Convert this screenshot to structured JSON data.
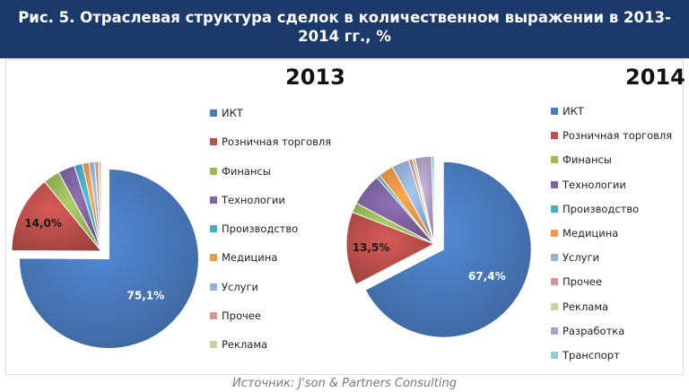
{
  "header": {
    "title": "Рис. 5. Отраслевая структура сделок в количественном выражении в 2013-2014 гг., %"
  },
  "source": "Источник: J'son & Partners Consulting",
  "chart_data": [
    {
      "type": "pie",
      "title": "2013",
      "legend_position": "right",
      "exploded": "ИКТ",
      "slices": [
        {
          "label": "ИКТ",
          "value": 75.1,
          "color": "#4a7bc0",
          "data_label": "75,1%"
        },
        {
          "label": "Розничная торговля",
          "value": 14.0,
          "color": "#c0504d",
          "data_label": "14,0%"
        },
        {
          "label": "Финансы",
          "value": 3.0,
          "color": "#9bbb59"
        },
        {
          "label": "Технологии",
          "value": 3.0,
          "color": "#8064a2"
        },
        {
          "label": "Производство",
          "value": 1.5,
          "color": "#4bacc6"
        },
        {
          "label": "Медицина",
          "value": 1.2,
          "color": "#f79646"
        },
        {
          "label": "Услуги",
          "value": 1.0,
          "color": "#95b3d7"
        },
        {
          "label": "Прочее",
          "value": 0.7,
          "color": "#d99694"
        },
        {
          "label": "Реклама",
          "value": 0.5,
          "color": "#c3d69b"
        }
      ]
    },
    {
      "type": "pie",
      "title": "2014",
      "legend_position": "right",
      "exploded": "ИКТ",
      "slices": [
        {
          "label": "ИКТ",
          "value": 67.4,
          "color": "#4a7bc0",
          "data_label": "67,4%"
        },
        {
          "label": "Розничная торговля",
          "value": 13.5,
          "color": "#c0504d",
          "data_label": "13,5%"
        },
        {
          "label": "Финансы",
          "value": 1.8,
          "color": "#9bbb59"
        },
        {
          "label": "Технологии",
          "value": 6.0,
          "color": "#8064a2"
        },
        {
          "label": "Производство",
          "value": 0.6,
          "color": "#4bacc6"
        },
        {
          "label": "Медицина",
          "value": 2.8,
          "color": "#f79646"
        },
        {
          "label": "Услуги",
          "value": 3.2,
          "color": "#95b3d7"
        },
        {
          "label": "Прочее",
          "value": 0.7,
          "color": "#d99694"
        },
        {
          "label": "Реклама",
          "value": 0.5,
          "color": "#c3d69b"
        },
        {
          "label": "Разработка",
          "value": 3.0,
          "color": "#b2a1c7"
        },
        {
          "label": "Транспорт",
          "value": 0.5,
          "color": "#92cddc"
        }
      ]
    }
  ]
}
